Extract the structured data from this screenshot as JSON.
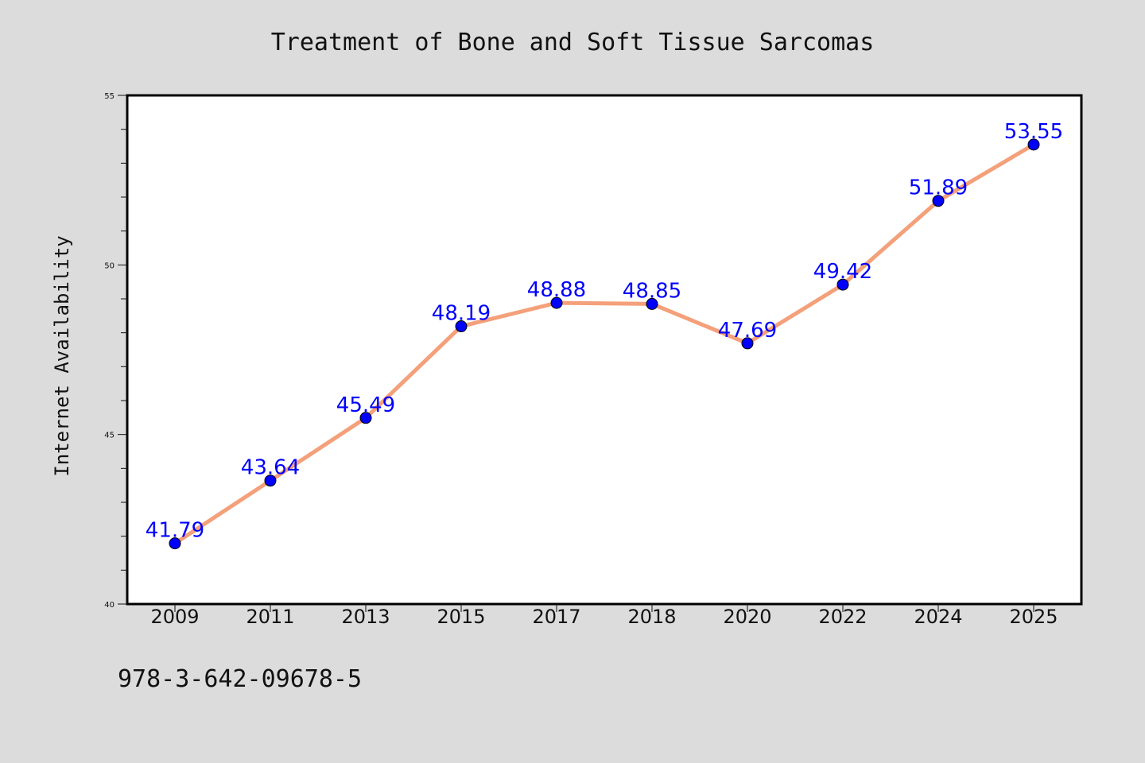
{
  "chart_data": {
    "type": "line",
    "title": "Treatment of Bone and Soft Tissue Sarcomas",
    "xlabel": "",
    "ylabel": "Internet Availability",
    "categories": [
      "2009",
      "2011",
      "2013",
      "2015",
      "2017",
      "2018",
      "2020",
      "2022",
      "2024",
      "2025"
    ],
    "series": [
      {
        "values": [
          41.79,
          43.64,
          45.49,
          48.19,
          48.88,
          48.85,
          47.69,
          49.42,
          51.89,
          53.55
        ],
        "labels": [
          "41.79",
          "43.64",
          "45.49",
          "48.19",
          "48.88",
          "48.85",
          "47.69",
          "49.42",
          "51.89",
          "53.55"
        ]
      }
    ],
    "ylim": [
      40,
      55
    ],
    "yticks": [
      "40",
      "45",
      "50",
      "55"
    ],
    "grid": false,
    "line_color": "#f4a07a",
    "marker_color": "#0000ff",
    "label_color": "#0000ff",
    "background_color": "#dcdcdc",
    "plot_background_color": "#ffffff"
  },
  "footer_text": "978-3-642-09678-5"
}
